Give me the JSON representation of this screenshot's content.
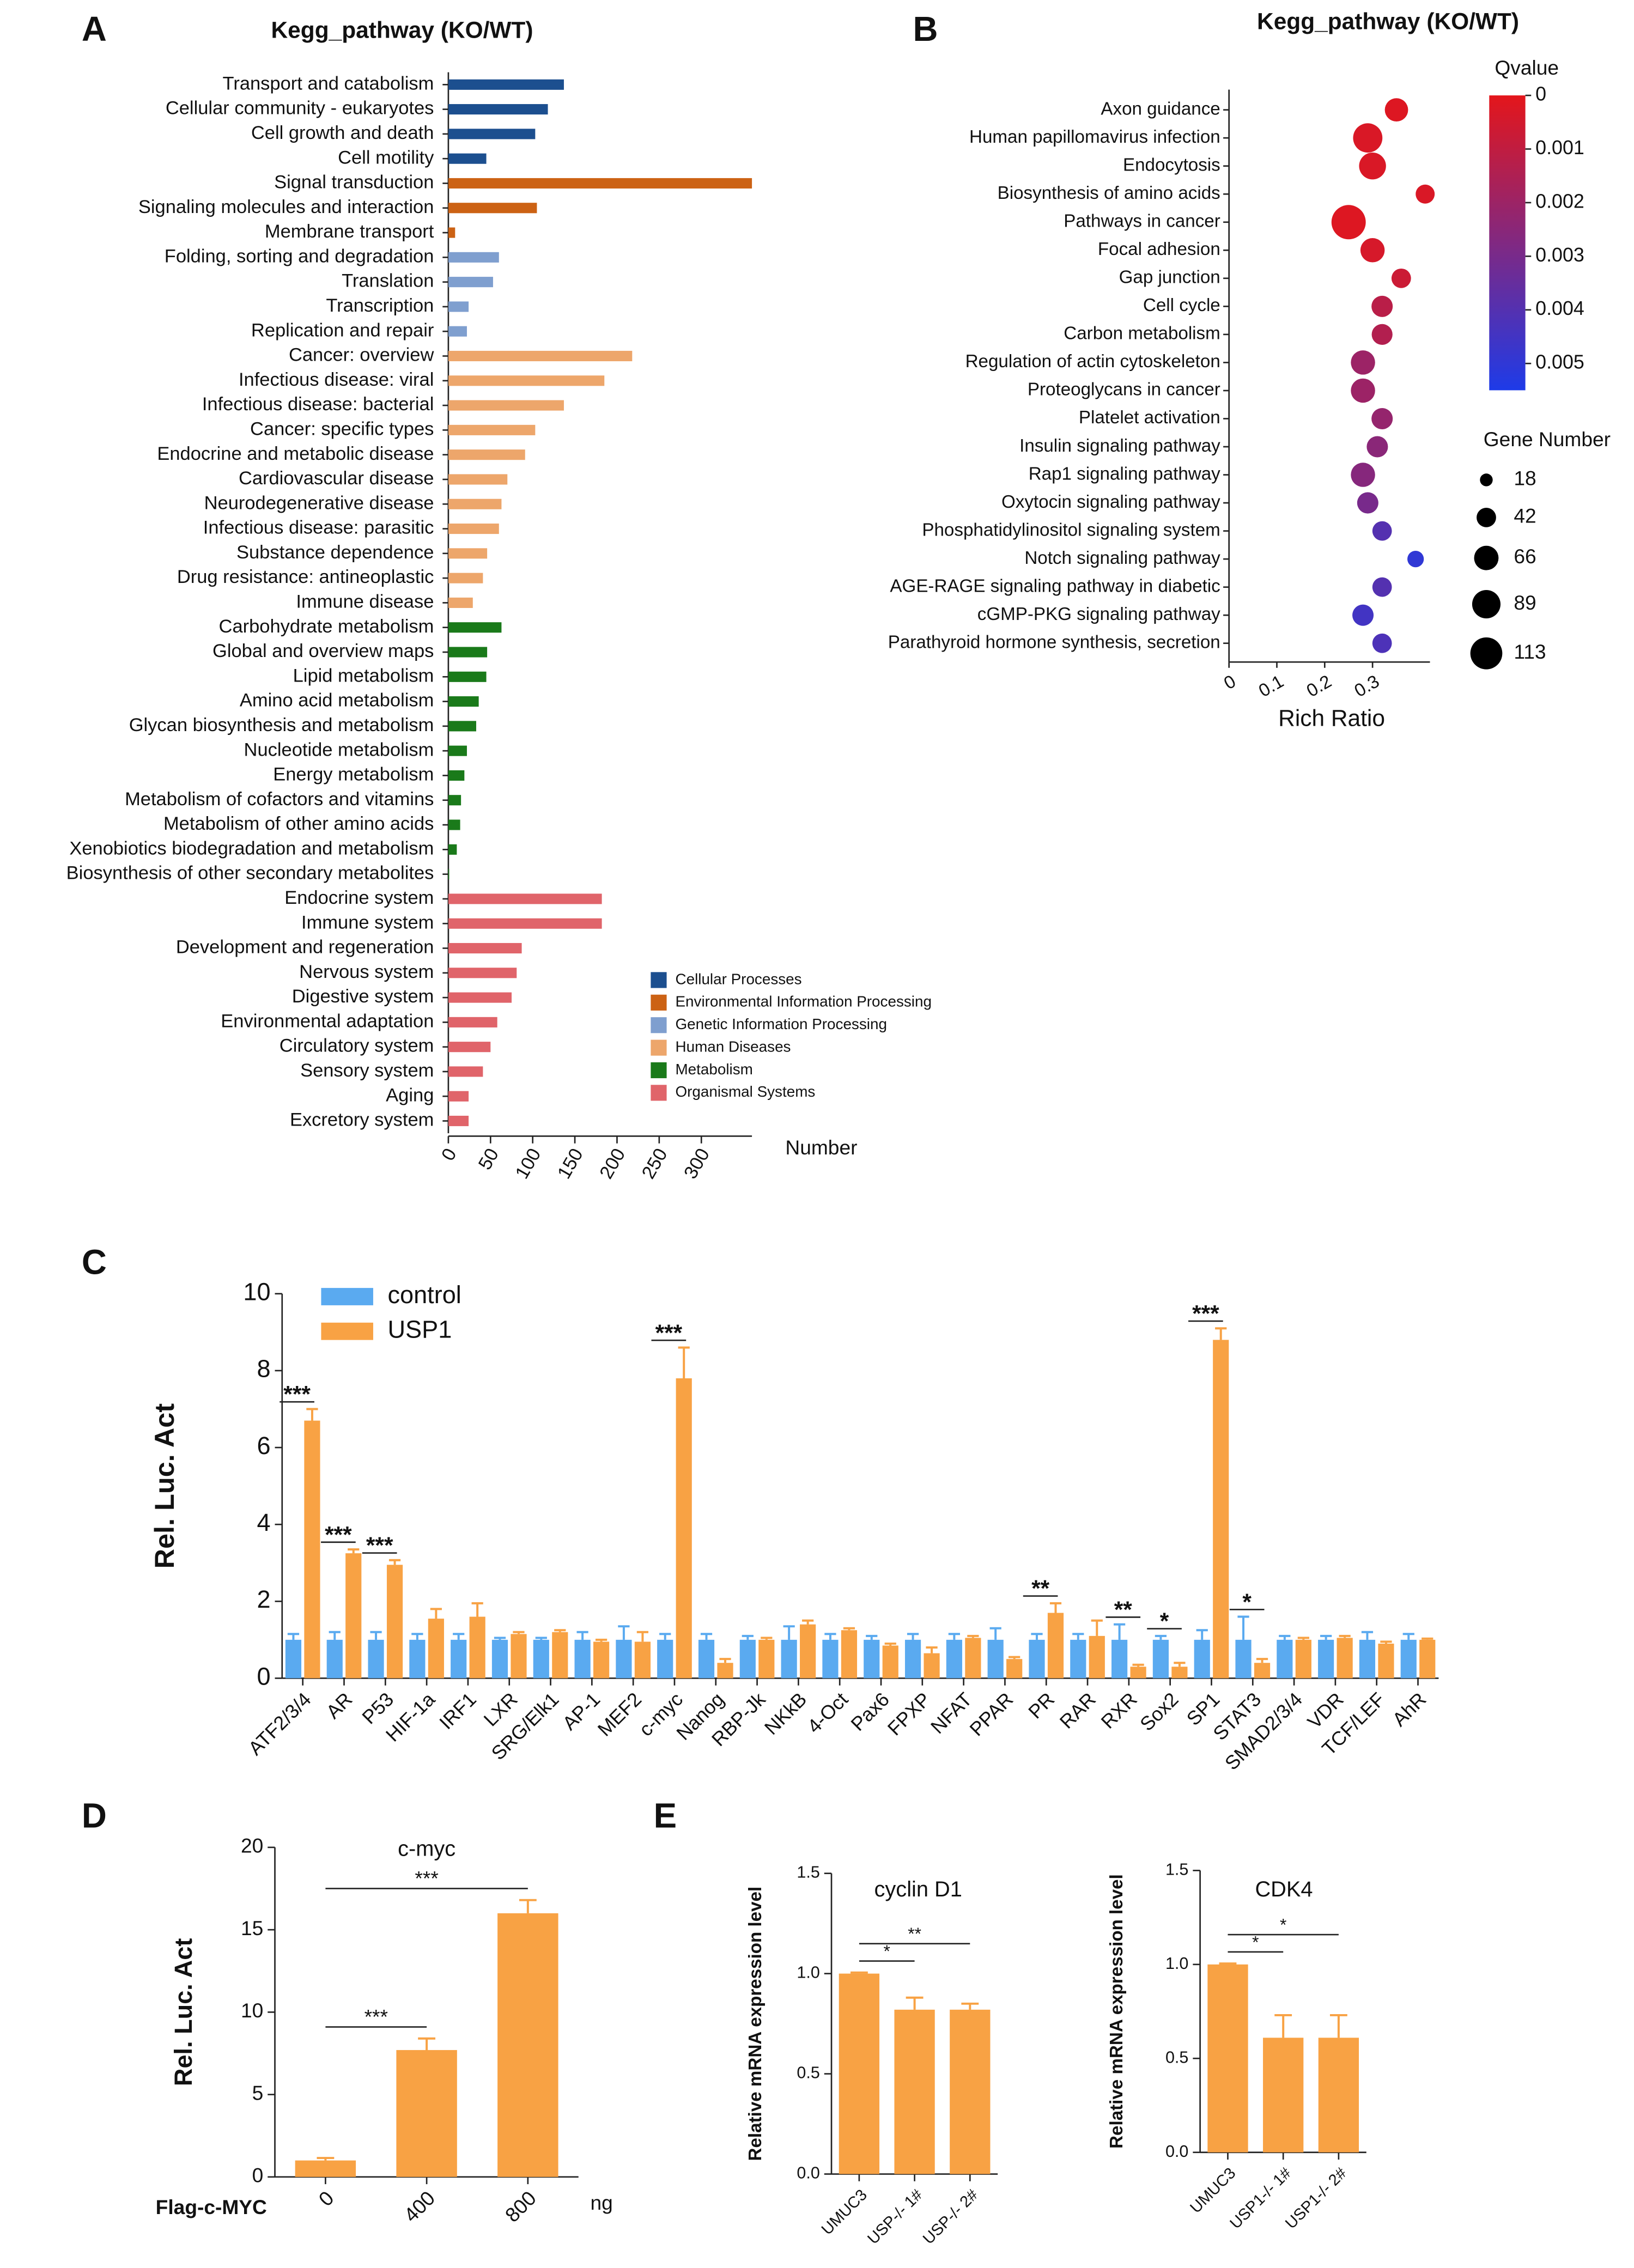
{
  "chart_data": [
    {
      "type": "hbar",
      "panel": "A",
      "title": "Kegg_pathway (KO/WT)",
      "xlabel": "Number",
      "categories": [
        "Transport and catabolism",
        "Cellular community - eukaryotes",
        "Cell growth and death",
        "Cell motility",
        "Signal transduction",
        "Signaling molecules and interaction",
        "Membrane transport",
        "Folding, sorting and degradation",
        "Translation",
        "Transcription",
        "Replication and repair",
        "Cancer: overview",
        "Infectious disease: viral",
        "Infectious disease: bacterial",
        "Cancer: specific types",
        "Endocrine and metabolic disease",
        "Cardiovascular disease",
        "Neurodegenerative disease",
        "Infectious disease: parasitic",
        "Substance dependence",
        "Drug resistance: antineoplastic",
        "Immune disease",
        "Carbohydrate metabolism",
        "Global and overview maps",
        "Lipid metabolism",
        "Amino acid metabolism",
        "Glycan biosynthesis and metabolism",
        "Nucleotide metabolism",
        "Energy metabolism",
        "Metabolism of cofactors and vitamins",
        "Metabolism of other amino acids",
        "Xenobiotics biodegradation and metabolism",
        "Biosynthesis of other secondary metabolites",
        "Endocrine system",
        "Immune system",
        "Development and regeneration",
        "Nervous system",
        "Digestive system",
        "Environmental adaptation",
        "Circulatory system",
        "Sensory system",
        "Aging",
        "Excretory system"
      ],
      "values": [
        137,
        118,
        103,
        45,
        360,
        105,
        8,
        60,
        53,
        24,
        22,
        218,
        185,
        137,
        103,
        91,
        70,
        63,
        60,
        46,
        41,
        29,
        63,
        46,
        45,
        36,
        33,
        22,
        19,
        15,
        14,
        10,
        1,
        182,
        182,
        87,
        81,
        75,
        58,
        50,
        41,
        24,
        24
      ],
      "bar_colors": [
        "#1c4f8f",
        "#1c4f8f",
        "#1c4f8f",
        "#1c4f8f",
        "#cc6214",
        "#cc6214",
        "#cc6214",
        "#7f9fcf",
        "#7f9fcf",
        "#7f9fcf",
        "#7f9fcf",
        "#eda66b",
        "#eda66b",
        "#eda66b",
        "#eda66b",
        "#eda66b",
        "#eda66b",
        "#eda66b",
        "#eda66b",
        "#eda66b",
        "#eda66b",
        "#eda66b",
        "#1a7a1a",
        "#1a7a1a",
        "#1a7a1a",
        "#1a7a1a",
        "#1a7a1a",
        "#1a7a1a",
        "#1a7a1a",
        "#1a7a1a",
        "#1a7a1a",
        "#1a7a1a",
        "#1a7a1a",
        "#e0646a",
        "#e0646a",
        "#e0646a",
        "#e0646a",
        "#e0646a",
        "#e0646a",
        "#e0646a",
        "#e0646a",
        "#e0646a",
        "#e0646a"
      ],
      "xlim": [
        0,
        360
      ],
      "xticks": [
        0,
        50,
        100,
        150,
        200,
        250,
        300
      ],
      "legend": [
        {
          "name": "Cellular Processes",
          "color": "#1c4f8f"
        },
        {
          "name": "Environmental Information Processing",
          "color": "#cc6214"
        },
        {
          "name": "Genetic Information Processing",
          "color": "#7f9fcf"
        },
        {
          "name": "Human Diseases",
          "color": "#eda66b"
        },
        {
          "name": "Metabolism",
          "color": "#1a7a1a"
        },
        {
          "name": "Organismal Systems",
          "color": "#e0646a"
        }
      ]
    },
    {
      "type": "bubble",
      "panel": "B",
      "title": "Kegg_pathway (KO/WT)",
      "xlabel": "Rich Ratio",
      "categories": [
        "Axon guidance",
        "Human papillomavirus infection",
        "Endocytosis",
        "Biosynthesis of amino acids",
        "Pathways in cancer",
        "Focal adhesion",
        "Gap junction",
        "Cell cycle",
        "Carbon metabolism",
        "Regulation of actin cytoskeleton",
        "Proteoglycans in cancer",
        "Platelet activation",
        "Insulin signaling pathway",
        "Rap1 signaling pathway",
        "Oxytocin signaling pathway",
        "Phosphatidylinositol signaling system",
        "Notch signaling pathway",
        "AGE-RAGE signaling pathway in diabetic",
        "cGMP-PKG signaling pathway",
        "Parathyroid hormone synthesis, secretion"
      ],
      "x": [
        0.35,
        0.29,
        0.3,
        0.41,
        0.25,
        0.3,
        0.36,
        0.32,
        0.32,
        0.28,
        0.28,
        0.32,
        0.31,
        0.28,
        0.29,
        0.32,
        0.39,
        0.32,
        0.28,
        0.32
      ],
      "sizes": [
        60,
        95,
        80,
        40,
        130,
        65,
        42,
        50,
        48,
        65,
        65,
        50,
        50,
        65,
        50,
        42,
        30,
        42,
        50,
        42
      ],
      "qvalues": [
        0.0002,
        0.0003,
        0.0003,
        0.0003,
        0.0002,
        0.0004,
        0.0007,
        0.0012,
        0.0014,
        0.002,
        0.002,
        0.0022,
        0.0025,
        0.0026,
        0.003,
        0.004,
        0.005,
        0.004,
        0.0045,
        0.0042
      ],
      "xlim": [
        0,
        0.42
      ],
      "xticks": [
        0,
        0.1,
        0.2,
        0.3
      ],
      "highlight_index": 4,
      "highlight_color": "#e8141b",
      "color_label": "Qvalue",
      "colorscale": [
        "#e4161b",
        "#1e3be8"
      ],
      "qlim": [
        0,
        0.0055
      ],
      "qticks": [
        0,
        0.001,
        0.002,
        0.003,
        0.004,
        0.005
      ],
      "size_label": "Gene Number",
      "size_legend": [
        18,
        42,
        66,
        89,
        113
      ]
    },
    {
      "type": "groupbar",
      "panel": "C",
      "ylabel": "Rel. Luc. Act",
      "categories": [
        "ATF2/3/4",
        "AR",
        "P53",
        "HIF-1a",
        "IRF1",
        "LXR",
        "SRG/Elk1",
        "AP-1",
        "MEF2",
        "c-myc",
        "Nanog",
        "RBP-Jk",
        "NKkB",
        "4-Oct",
        "Pax6",
        "FPXP",
        "NFAT",
        "PPAR",
        "PR",
        "RAR",
        "RXR",
        "Sox2",
        "SP1",
        "STAT3",
        "SMAD2/3/4",
        "VDR",
        "TCF/LEF",
        "AhR"
      ],
      "series": [
        {
          "name": "control",
          "color": "#5aaaf0",
          "values": [
            1,
            1,
            1,
            1,
            1,
            1,
            1,
            1,
            1,
            1,
            1,
            1,
            1,
            1,
            1,
            1,
            1,
            1,
            1,
            1,
            1,
            1,
            1,
            1,
            1,
            1,
            1,
            1
          ],
          "errors": [
            0.15,
            0.2,
            0.2,
            0.15,
            0.15,
            0.05,
            0.05,
            0.2,
            0.35,
            0.15,
            0.15,
            0.1,
            0.35,
            0.15,
            0.1,
            0.15,
            0.15,
            0.3,
            0.15,
            0.15,
            0.4,
            0.1,
            0.25,
            0.6,
            0.1,
            0.1,
            0.2,
            0.15
          ]
        },
        {
          "name": "USP1",
          "color": "#f8a244",
          "values": [
            6.7,
            3.25,
            2.95,
            1.55,
            1.6,
            1.15,
            1.2,
            0.95,
            0.95,
            7.8,
            0.4,
            1.0,
            1.4,
            1.25,
            0.85,
            0.65,
            1.05,
            0.5,
            1.7,
            1.1,
            0.3,
            0.3,
            8.8,
            0.4,
            1.0,
            1.05,
            0.9,
            1.0
          ],
          "errors": [
            0.3,
            0.1,
            0.12,
            0.25,
            0.35,
            0.05,
            0.05,
            0.05,
            0.25,
            0.8,
            0.1,
            0.05,
            0.1,
            0.05,
            0.05,
            0.15,
            0.05,
            0.05,
            0.25,
            0.4,
            0.05,
            0.1,
            0.3,
            0.1,
            0.05,
            0.05,
            0.05,
            0.03
          ]
        }
      ],
      "significance": [
        "***",
        "***",
        "***",
        null,
        null,
        null,
        null,
        null,
        null,
        "***",
        null,
        null,
        null,
        null,
        null,
        null,
        null,
        null,
        "**",
        null,
        "**",
        "*",
        "***",
        "*",
        null,
        null,
        null,
        null
      ],
      "ylim": [
        0,
        10
      ],
      "yticks": [
        0,
        2,
        4,
        6,
        8,
        10
      ]
    },
    {
      "type": "bar",
      "panel": "D",
      "title": "c-myc",
      "ylabel": "Rel. Luc. Act",
      "xlabel": "Flag-c-MYC",
      "unit": "ng",
      "categories": [
        "0",
        "400",
        "800"
      ],
      "values": [
        1.0,
        7.7,
        16.0
      ],
      "errors": [
        0.15,
        0.7,
        0.8
      ],
      "color": "#f8a244",
      "comparisons": [
        {
          "from": 0,
          "to": 1,
          "text": "***"
        },
        {
          "from": 0,
          "to": 2,
          "text": "***"
        }
      ],
      "ylim": [
        0,
        20
      ],
      "yticks": [
        0,
        5,
        10,
        15,
        20
      ]
    },
    {
      "type": "bar",
      "panel": "E",
      "title": "cyclin D1",
      "ylabel": "Relative mRNA expression level",
      "categories": [
        "UMUC3",
        "USP-/- 1#",
        "USP-/- 2#"
      ],
      "values": [
        1.0,
        0.82,
        0.82
      ],
      "errors": [
        0.005,
        0.06,
        0.03
      ],
      "color": "#f8a244",
      "comparisons": [
        {
          "from": 0,
          "to": 1,
          "text": "*"
        },
        {
          "from": 0,
          "to": 2,
          "text": "**"
        }
      ],
      "ylim": [
        0,
        1.5
      ],
      "yticks": [
        {
          "value": 0,
          "label": "0.0"
        },
        {
          "value": 0.5,
          "label": "0.5"
        },
        {
          "value": 1,
          "label": "1.0"
        },
        {
          "value": 1.5,
          "label": "1.5"
        }
      ]
    },
    {
      "type": "bar",
      "title": "CDK4",
      "ylabel": "Relative mRNA expression level",
      "categories": [
        "UMUC3",
        "USP1-/- 1#",
        "USP1-/- 2#"
      ],
      "values": [
        1.0,
        0.61,
        0.61
      ],
      "errors": [
        0.005,
        0.12,
        0.12
      ],
      "color": "#f8a244",
      "comparisons": [
        {
          "from": 0,
          "to": 1,
          "text": "*"
        },
        {
          "from": 0,
          "to": 2,
          "text": "*"
        }
      ],
      "ylim": [
        0,
        1.5
      ],
      "yticks": [
        {
          "value": 0,
          "label": "0.0"
        },
        {
          "value": 0.5,
          "label": "0.5"
        },
        {
          "value": 1,
          "label": "1.0"
        },
        {
          "value": 1.5,
          "label": "1.5"
        }
      ]
    }
  ]
}
